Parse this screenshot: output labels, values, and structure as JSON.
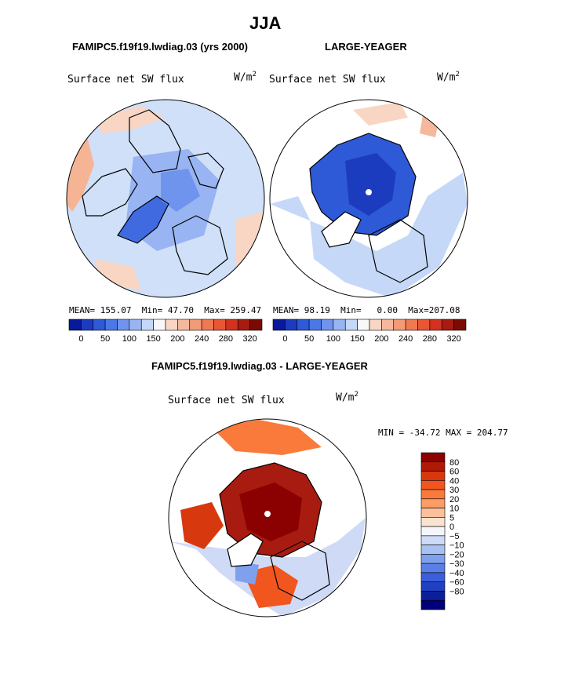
{
  "page": {
    "title": "JJA",
    "panel_left_header": "FAMIPC5.f19f19.lwdiag.03 (yrs 2000)",
    "panel_right_header": "LARGE-YEAGER",
    "diff_header": "FAMIPC5.f19f19.lwdiag.03 - LARGE-YEAGER"
  },
  "chart_data": [
    {
      "type": "heatmap",
      "projection": "polar-stereographic-north",
      "title": "Surface net SW flux",
      "units": "W/m",
      "units_exp": "2",
      "stats": {
        "mean_label": "MEAN=",
        "mean": "155.07",
        "min_label": "Min=",
        "min": "47.70",
        "max_label": "Max=",
        "max": "259.47"
      },
      "colorbar": {
        "colors": [
          "#08199c",
          "#1c3cc0",
          "#2e59d7",
          "#4a78e6",
          "#6f94ee",
          "#98b4f2",
          "#c5d8f7",
          "#f8f8f8",
          "#f9d6c4",
          "#f6b89c",
          "#f39a77",
          "#ef7a52",
          "#e85634",
          "#d3321e",
          "#a81b10",
          "#7c0a04"
        ],
        "tick_labels": [
          "0",
          "50",
          "100",
          "150",
          "200",
          "240",
          "280",
          "320"
        ],
        "orientation": "horizontal"
      }
    },
    {
      "type": "heatmap",
      "projection": "polar-stereographic-north",
      "title": "Surface net SW flux",
      "units": "W/m",
      "units_exp": "2",
      "stats": {
        "mean_label": "MEAN=",
        "mean": "98.19",
        "min_label": "Min=",
        "min": "0.00",
        "max_label": "Max=",
        "max": "207.08"
      },
      "colorbar": {
        "colors": [
          "#08199c",
          "#1c3cc0",
          "#2e59d7",
          "#4a78e6",
          "#6f94ee",
          "#98b4f2",
          "#c5d8f7",
          "#f8f8f8",
          "#f9d6c4",
          "#f6b89c",
          "#f39a77",
          "#ef7a52",
          "#e85634",
          "#d3321e",
          "#a81b10",
          "#7c0a04"
        ],
        "tick_labels": [
          "0",
          "50",
          "100",
          "150",
          "200",
          "240",
          "280",
          "320"
        ],
        "orientation": "horizontal"
      }
    },
    {
      "type": "heatmap",
      "projection": "polar-stereographic-north",
      "title": "Surface net SW flux",
      "units": "W/m",
      "units_exp": "2",
      "stats_text": "MIN = -34.72 MAX = 204.77",
      "colorbar": {
        "colors": [
          "#8b0000",
          "#b01a05",
          "#d8380e",
          "#f0561e",
          "#f97a3b",
          "#fb9d66",
          "#fdc09a",
          "#fde3cf",
          "#f4f6fb",
          "#cfdaf6",
          "#a9c0f2",
          "#7fa0ec",
          "#5a7fe6",
          "#3b5edb",
          "#2040c4",
          "#0b1f99",
          "#00007a"
        ],
        "tick_labels": [
          "80",
          "60",
          "40",
          "30",
          "20",
          "10",
          "5",
          "0",
          "-5",
          "-10",
          "-20",
          "-30",
          "-40",
          "-60",
          "-80"
        ],
        "orientation": "vertical"
      }
    }
  ]
}
